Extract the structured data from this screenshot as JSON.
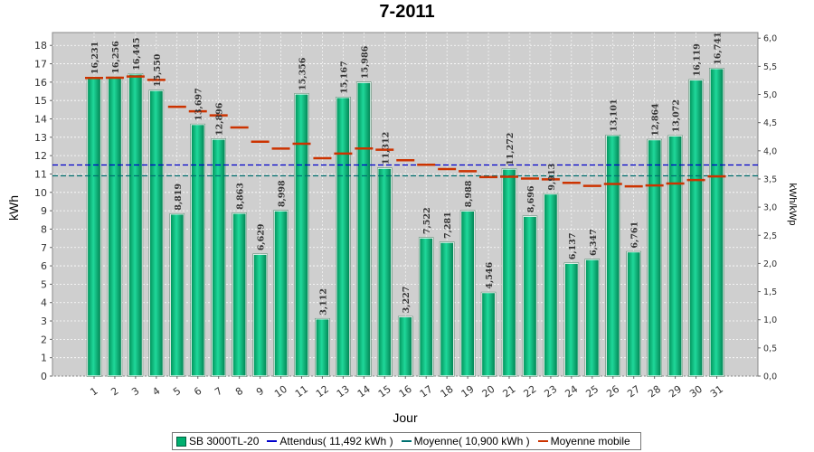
{
  "chart_data": {
    "type": "bar",
    "title": "7-2011",
    "xlabel": "Jour",
    "ylabel": "kWh",
    "ylabel2": "kWh/kWp",
    "categories": [
      "1",
      "2",
      "3",
      "4",
      "5",
      "6",
      "7",
      "8",
      "9",
      "10",
      "11",
      "12",
      "13",
      "14",
      "15",
      "16",
      "17",
      "18",
      "19",
      "20",
      "21",
      "22",
      "23",
      "24",
      "25",
      "26",
      "27",
      "28",
      "29",
      "30",
      "31"
    ],
    "series": [
      {
        "name": "SB 3000TL-20",
        "type": "bar",
        "color": "#00b070",
        "values": [
          16.231,
          16.256,
          16.445,
          15.55,
          8.819,
          13.697,
          12.896,
          8.863,
          6.629,
          8.998,
          15.356,
          3.112,
          15.167,
          15.986,
          11.312,
          3.227,
          7.522,
          7.281,
          8.988,
          4.546,
          11.272,
          8.696,
          9.913,
          6.137,
          6.347,
          13.101,
          6.761,
          12.864,
          13.072,
          16.119,
          16.741
        ],
        "data_labels": [
          "16,231",
          "16,256",
          "16,445",
          "15,550",
          "8,819",
          "13,697",
          "12,896",
          "8,863",
          "6,629",
          "8,998",
          "15,356",
          "3,112",
          "15,167",
          "15,986",
          "11,312",
          "3,227",
          "7,522",
          "7,281",
          "8,988",
          "4,546",
          "11,272",
          "8,696",
          "9,913",
          "6,137",
          "6,347",
          "13,101",
          "6,761",
          "12,864",
          "13,072",
          "16,119",
          "16,741"
        ]
      },
      {
        "name": "Attendus( 11,492 kWh )",
        "type": "hline",
        "color": "#0000cc",
        "value": 11.492
      },
      {
        "name": "Moyenne( 10,900 kWh )",
        "type": "hline",
        "color": "#007070",
        "value": 10.9
      },
      {
        "name": "Moyenne mobile",
        "type": "step",
        "color": "#cc3300",
        "values": [
          16.23,
          16.24,
          16.31,
          16.12,
          14.66,
          14.41,
          14.19,
          13.53,
          12.76,
          12.38,
          12.65,
          11.86,
          12.11,
          12.39,
          12.32,
          11.75,
          11.5,
          11.27,
          11.15,
          10.83,
          10.85,
          10.75,
          10.71,
          10.52,
          10.35,
          10.46,
          10.33,
          10.38,
          10.48,
          10.67,
          10.87
        ]
      }
    ],
    "ylim": [
      0,
      18.7
    ],
    "yticks": [
      0,
      1,
      2,
      3,
      4,
      5,
      6,
      7,
      8,
      9,
      10,
      11,
      12,
      13,
      14,
      15,
      16,
      17,
      18
    ],
    "ylim2": [
      0,
      6.1
    ],
    "yticks2": [
      "0,0",
      "0,5",
      "1,0",
      "1,5",
      "2,0",
      "2,5",
      "3,0",
      "3,5",
      "4,0",
      "4,5",
      "5,0",
      "5,5",
      "6,0"
    ],
    "grid": true,
    "legend_position": "bottom"
  }
}
